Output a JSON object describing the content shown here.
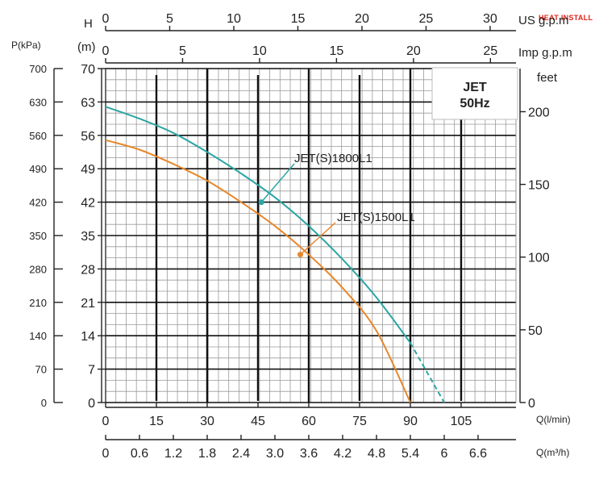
{
  "brand": {
    "text": "HEAT INSTALL",
    "color": "#e2231a"
  },
  "colors": {
    "teal": "#2aa6a4",
    "orange": "#e8872a",
    "grid": "#9a9a9a",
    "major": "#111111"
  },
  "chart_data": {
    "type": "line",
    "title_line1": "JET",
    "title_line2": "50Hz",
    "left_outer_label": "P(kPa)",
    "left_inner_label_1": "H",
    "left_inner_label_2": "(m)",
    "right_label": "feet",
    "top1_label": "US g.p.m",
    "top2_label": "Imp g.p.m",
    "bottom1_label": "Q(l/min)",
    "bottom2_label": "Q(m³/h)",
    "ylim": [
      0,
      70
    ],
    "xlim": [
      0,
      120
    ],
    "h_ticks": [
      "0",
      "7",
      "14",
      "21",
      "28",
      "35",
      "42",
      "49",
      "56",
      "63",
      "70"
    ],
    "p_ticks": [
      "0",
      "70",
      "140",
      "210",
      "280",
      "350",
      "420",
      "490",
      "560",
      "630",
      "700"
    ],
    "feet_ticks": [
      "0",
      "50",
      "100",
      "150",
      "200"
    ],
    "feet_values": [
      0,
      50,
      100,
      150,
      200
    ],
    "q_lmin_ticks": [
      "0",
      "15",
      "30",
      "45",
      "60",
      "75",
      "90",
      "105"
    ],
    "q_lmin_values": [
      0,
      15,
      30,
      45,
      60,
      75,
      90,
      105
    ],
    "q_m3h_ticks": [
      "0",
      "0.6",
      "1.2",
      "1.8",
      "2.4",
      "3.0",
      "3.6",
      "4.2",
      "4.8",
      "5.4",
      "6",
      "6.6"
    ],
    "q_m3h_values": [
      0,
      0.6,
      1.2,
      1.8,
      2.4,
      3.0,
      3.6,
      4.2,
      4.8,
      5.4,
      6.0,
      6.6
    ],
    "us_gpm_ticks": [
      "0",
      "5",
      "10",
      "15",
      "20",
      "25",
      "30"
    ],
    "us_gpm_values": [
      0,
      5,
      10,
      15,
      20,
      25,
      30
    ],
    "imp_gpm_ticks": [
      "0",
      "5",
      "10",
      "15",
      "20",
      "25"
    ],
    "imp_gpm_values": [
      0,
      5,
      10,
      15,
      20,
      25
    ],
    "series": [
      {
        "name": "JET(S)1800L1",
        "color": "#2aa6a4",
        "x": [
          0,
          10,
          20,
          30,
          40,
          50,
          60,
          70,
          80,
          90
        ],
        "y": [
          62,
          59.5,
          56.5,
          52.5,
          48,
          43,
          37,
          30,
          22,
          12.5
        ],
        "dashed_x": [
          90,
          100
        ],
        "dashed_y": [
          12.5,
          0
        ],
        "marker": [
          46,
          42
        ]
      },
      {
        "name": "JET(S)1500L1",
        "color": "#e8872a",
        "x": [
          0,
          10,
          20,
          30,
          40,
          50,
          60,
          70,
          80,
          90
        ],
        "y": [
          55,
          53,
          50,
          46.5,
          42,
          37,
          31,
          24,
          15,
          0
        ],
        "marker": [
          57.5,
          31
        ]
      }
    ]
  }
}
